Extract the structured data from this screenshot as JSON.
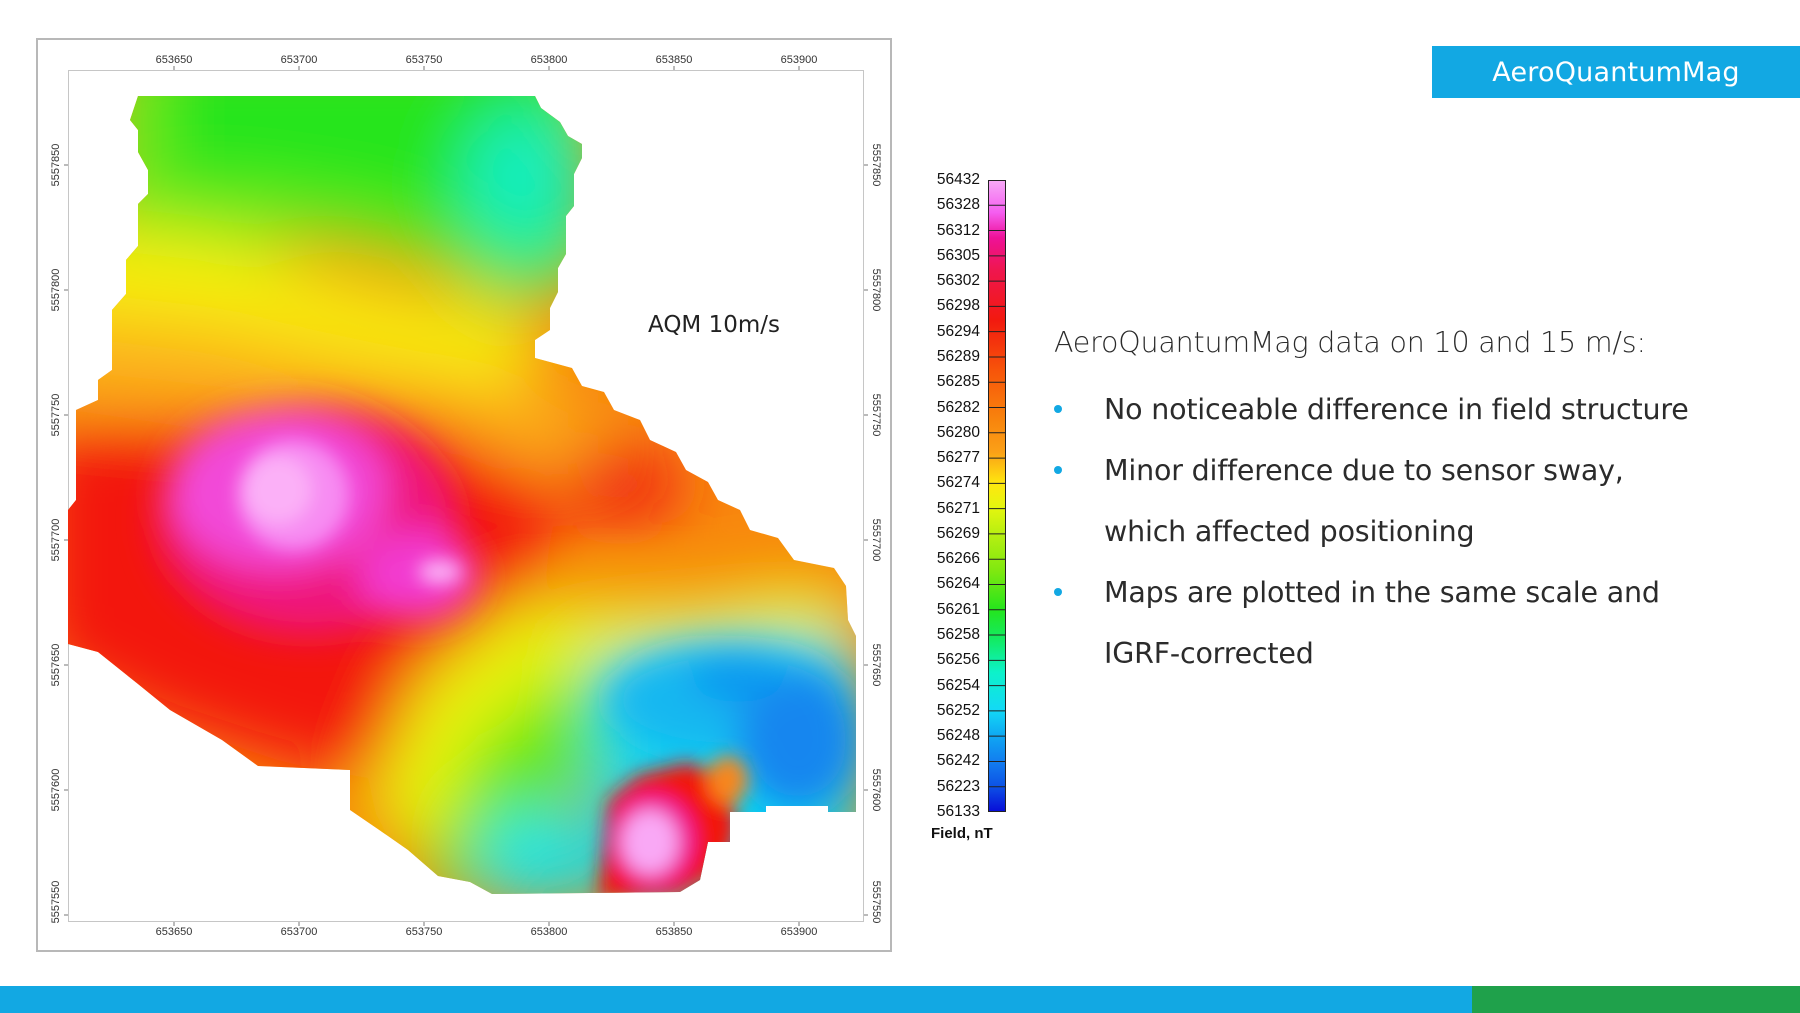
{
  "brand": {
    "label": "AeroQuantumMag",
    "color": "#12a8e3"
  },
  "map": {
    "annotation": "AQM 10m/s",
    "x_ticks": [
      "653650",
      "653700",
      "653750",
      "653800",
      "653850",
      "653900"
    ],
    "y_ticks": [
      "5557850",
      "5557800",
      "5557750",
      "5557700",
      "5557650",
      "5557600",
      "5557550"
    ]
  },
  "legend": {
    "title": "Field, nT",
    "values": [
      "56432",
      "56328",
      "56312",
      "56305",
      "56302",
      "56298",
      "56294",
      "56289",
      "56285",
      "56282",
      "56280",
      "56277",
      "56274",
      "56271",
      "56269",
      "56266",
      "56264",
      "56261",
      "56258",
      "56256",
      "56254",
      "56252",
      "56248",
      "56242",
      "56223",
      "56133"
    ]
  },
  "text": {
    "heading": "AeroQuantumMag data on 10 and 15 m/s:",
    "bullets": [
      "No noticeable difference in field structure",
      "Minor difference due to sensor sway, which affected positioning",
      "Maps are plotted in the same scale and IGRF-corrected"
    ]
  },
  "colors": {
    "accent": "#12a8e3",
    "footer_green": "#1fa14b"
  }
}
